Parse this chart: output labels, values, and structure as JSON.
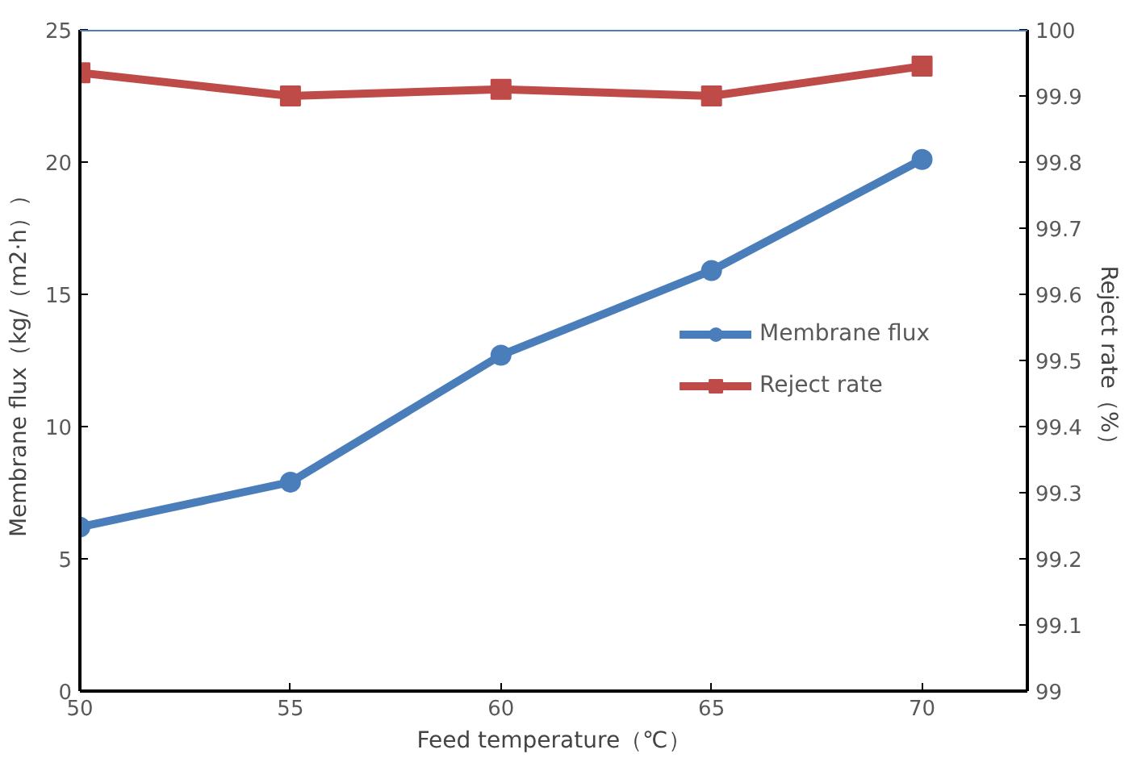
{
  "chart_data": {
    "type": "line",
    "xlabel": "Feed temperature（℃）",
    "ylabel": "Membrane flux（kg/（m2·h））",
    "y2label": "Reject rate（%）",
    "x": [
      50,
      55,
      60,
      65,
      70
    ],
    "xlim": [
      50,
      72.5
    ],
    "xticks": [
      50,
      55,
      60,
      65,
      70
    ],
    "ylim": [
      0,
      25
    ],
    "yticks": [
      0,
      5,
      10,
      15,
      20,
      25
    ],
    "y2lim": [
      99,
      100
    ],
    "y2ticks": [
      99,
      99.1,
      99.2,
      99.3,
      99.4,
      99.5,
      99.6,
      99.7,
      99.8,
      99.9,
      100
    ],
    "series": [
      {
        "name": "Membrane flux",
        "color": "#4a7ebb",
        "marker": "circle",
        "values": [
          6.2,
          7.9,
          12.7,
          15.9,
          20.1
        ]
      },
      {
        "name": "Reject rate",
        "color": "#be4b48",
        "marker": "square",
        "axis": "y2",
        "values": [
          99.935,
          99.9,
          99.91,
          99.9,
          99.945
        ]
      }
    ],
    "ref_lines": [
      {
        "axis": "y",
        "value": 25,
        "color": "#4a7ebb"
      }
    ],
    "grid": false,
    "legend": "right",
    "line_style": "solid"
  }
}
